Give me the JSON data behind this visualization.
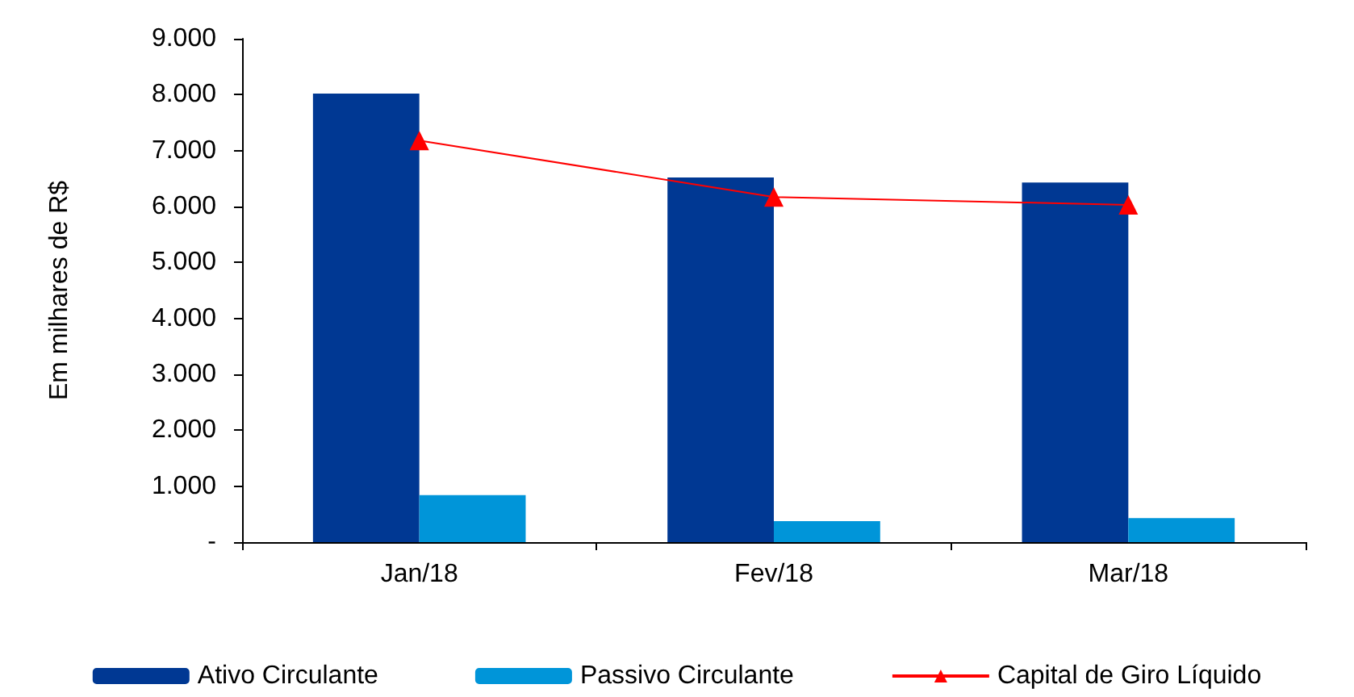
{
  "chart_data": {
    "type": "bar",
    "ylabel": "Em milhares de R$",
    "categories": [
      "Jan/18",
      "Fev/18",
      "Mar/18"
    ],
    "series": [
      {
        "name": "Ativo Circulante",
        "color": "#003893",
        "values": [
          8020,
          6520,
          6430
        ]
      },
      {
        "name": "Passivo Circulante",
        "color": "#0095d9",
        "values": [
          840,
          375,
          430
        ]
      },
      {
        "name": "Capital de Giro Líquido",
        "type": "line",
        "color": "#ff0000",
        "values": [
          7180,
          6170,
          6030
        ],
        "marker": "triangle",
        "line_style": "solid"
      }
    ],
    "ylim": [
      0,
      9000
    ],
    "yticks": [
      {
        "value": 0,
        "label": "-"
      },
      {
        "value": 1000,
        "label": "1.000"
      },
      {
        "value": 2000,
        "label": "2.000"
      },
      {
        "value": 3000,
        "label": "3.000"
      },
      {
        "value": 4000,
        "label": "4.000"
      },
      {
        "value": 5000,
        "label": "5.000"
      },
      {
        "value": 6000,
        "label": "6.000"
      },
      {
        "value": 7000,
        "label": "7.000"
      },
      {
        "value": 8000,
        "label": "8.000"
      },
      {
        "value": 9000,
        "label": "9.000"
      }
    ],
    "grid": false,
    "legend": "bottom"
  }
}
